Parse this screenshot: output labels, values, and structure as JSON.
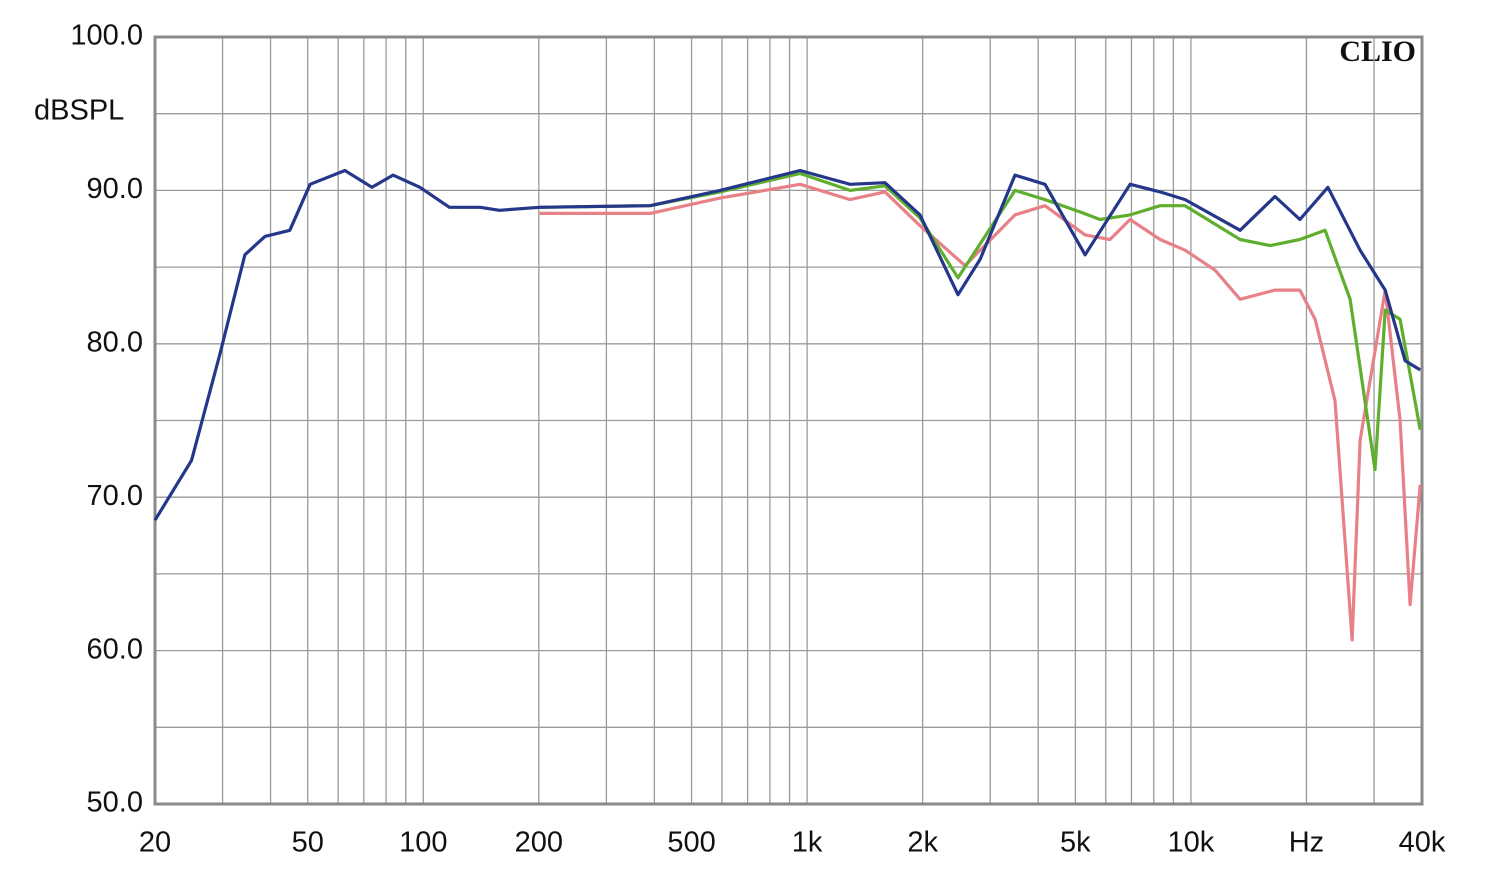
{
  "chart_data": {
    "type": "line",
    "ylabel": "dBSPL",
    "watermark": "CLIO",
    "xscale": "log",
    "grid": true,
    "xlim": [
      20,
      40000
    ],
    "ylim": [
      50,
      100
    ],
    "xticks": [
      20,
      50,
      100,
      200,
      500,
      {
        "value": 1000,
        "label": "1k"
      },
      {
        "value": 2000,
        "label": "2k"
      },
      {
        "value": 5000,
        "label": "5k"
      },
      {
        "value": 10000,
        "label": "10k"
      },
      {
        "value": 20000,
        "label": "Hz"
      },
      {
        "value": 40000,
        "label": "40k"
      }
    ],
    "xticks_minor": [
      30,
      40,
      60,
      70,
      80,
      90,
      300,
      400,
      600,
      700,
      800,
      900,
      3000,
      4000,
      6000,
      7000,
      8000,
      9000,
      30000
    ],
    "yticks": [
      {
        "value": 50,
        "label": "50.0"
      },
      {
        "value": 60,
        "label": "60.0"
      },
      {
        "value": 70,
        "label": "70.0"
      },
      {
        "value": 80,
        "label": "80.0"
      },
      {
        "value": 90,
        "label": "90.0"
      },
      {
        "value": 100,
        "label": "100.0"
      }
    ],
    "yticks_minor": [
      55,
      65,
      75,
      85,
      95
    ],
    "series": [
      {
        "color": "#e88088",
        "x": [
          201,
          390,
          593,
          959,
          1294,
          1596,
          1969,
          2578,
          3481,
          4168,
          5300,
          6155,
          6942,
          8311,
          9655,
          11560,
          13430,
          16560,
          19230,
          21060,
          23740,
          26300,
          27600,
          32070,
          35070,
          37240,
          39560
        ],
        "values": [
          88.5,
          88.5,
          89.5,
          90.4,
          89.4,
          89.9,
          87.7,
          85.1,
          88.4,
          89.0,
          87.1,
          86.8,
          88.1,
          86.8,
          86.1,
          84.8,
          82.9,
          83.5,
          83.5,
          81.6,
          76.3,
          60.7,
          73.7,
          83.5,
          75.0,
          63.0,
          70.8
        ]
      },
      {
        "color": "#5fae2e",
        "x": [
          201,
          390,
          593,
          959,
          1294,
          1596,
          1969,
          2472,
          3481,
          4168,
          5141,
          5797,
          6942,
          8311,
          9655,
          13430,
          16080,
          19230,
          22360,
          25990,
          30180,
          32070,
          35070,
          39560
        ],
        "values": [
          88.9,
          89.0,
          89.9,
          91.1,
          90.0,
          90.3,
          88.2,
          84.3,
          90.0,
          89.4,
          88.6,
          88.1,
          88.4,
          89.0,
          89.0,
          86.8,
          86.4,
          86.8,
          87.4,
          82.9,
          71.8,
          82.2,
          81.6,
          74.4
        ]
      },
      {
        "color": "#25378a",
        "x": [
          20,
          24.9,
          29.5,
          34.3,
          38.7,
          44.9,
          50.7,
          62.5,
          73.5,
          83.4,
          98,
          117,
          140.6,
          158,
          201,
          390,
          593,
          959,
          1294,
          1596,
          1969,
          2472,
          2823,
          3481,
          4168,
          5300,
          6942,
          8311,
          9655,
          13430,
          16560,
          19230,
          22750,
          27600,
          32070,
          36150,
          39560
        ],
        "values": [
          68.5,
          72.4,
          79.3,
          85.8,
          87.0,
          87.4,
          90.4,
          91.3,
          90.2,
          91.0,
          90.2,
          88.9,
          88.9,
          88.7,
          88.9,
          89.0,
          90.0,
          91.3,
          90.4,
          90.5,
          88.4,
          83.2,
          85.5,
          91.0,
          90.4,
          85.8,
          90.4,
          89.9,
          89.4,
          87.4,
          89.6,
          88.1,
          90.2,
          86.1,
          83.5,
          78.9,
          78.3
        ]
      }
    ]
  }
}
